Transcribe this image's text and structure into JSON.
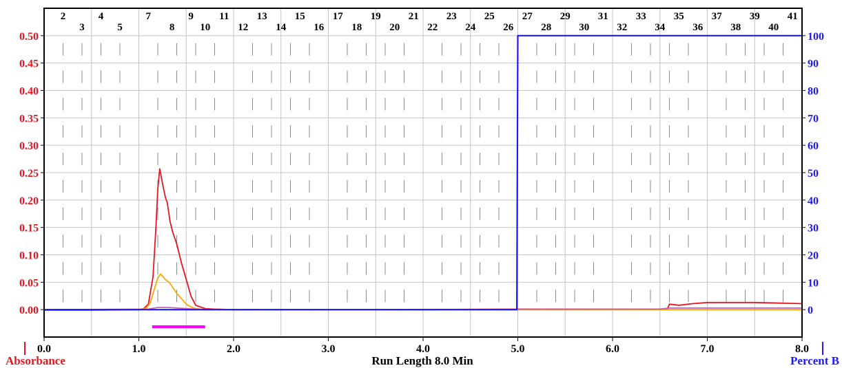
{
  "chart_data": {
    "type": "line",
    "xlabel": "Run Length 8.0 Min",
    "ylabel_left": "Absorbance",
    "ylabel_right": "Percent B",
    "xlim": [
      0,
      8
    ],
    "ylim_left": [
      -0.05,
      0.55
    ],
    "ylim_right": [
      -10,
      110
    ],
    "x_ticks": [
      "0.0",
      "1.0",
      "2.0",
      "3.0",
      "4.0",
      "5.0",
      "6.0",
      "7.0",
      "8.0"
    ],
    "y_ticks_left": [
      "0.50",
      "0.45",
      "0.40",
      "0.35",
      "0.30",
      "0.25",
      "0.20",
      "0.15",
      "0.10",
      "0.05",
      "0.00"
    ],
    "y_ticks_right": [
      "100",
      "90",
      "80",
      "70",
      "60",
      "50",
      "40",
      "30",
      "20",
      "10",
      "0"
    ],
    "grid": true,
    "fractions": {
      "labels": [
        "2",
        "3",
        "4",
        "5",
        "7",
        "8",
        "9",
        "10",
        "11",
        "12",
        "13",
        "14",
        "15",
        "16",
        "17",
        "18",
        "19",
        "20",
        "21",
        "22",
        "23",
        "24",
        "25",
        "26",
        "27",
        "28",
        "29",
        "30",
        "31",
        "32",
        "33",
        "34",
        "35",
        "36",
        "37",
        "38",
        "39",
        "40",
        "41"
      ],
      "label_x": [
        0.2,
        0.4,
        0.6,
        0.8,
        1.1,
        1.35,
        1.55,
        1.7,
        1.9,
        2.1,
        2.3,
        2.5,
        2.7,
        2.9,
        3.1,
        3.3,
        3.5,
        3.7,
        3.9,
        4.1,
        4.3,
        4.5,
        4.7,
        4.9,
        5.1,
        5.3,
        5.5,
        5.7,
        5.9,
        6.1,
        6.3,
        6.5,
        6.7,
        6.9,
        7.1,
        7.3,
        7.5,
        7.7,
        7.9
      ],
      "collected_from": 1.14,
      "collected_to": 1.7,
      "collected_color": "#ff00ff"
    },
    "series": [
      {
        "color": "#e8141c",
        "axis": "left",
        "x": [
          0.0,
          0.5,
          1.0,
          1.05,
          1.1,
          1.15,
          1.18,
          1.2,
          1.22,
          1.25,
          1.28,
          1.3,
          1.33,
          1.36,
          1.4,
          1.45,
          1.5,
          1.55,
          1.6,
          1.65,
          1.7,
          1.8,
          2.0,
          3.0,
          4.0,
          5.0,
          6.0,
          6.5,
          6.58,
          6.6,
          6.7,
          6.85,
          7.0,
          7.5,
          8.0
        ],
        "y": [
          -0.001,
          -0.001,
          0.0,
          0.002,
          0.01,
          0.06,
          0.15,
          0.22,
          0.257,
          0.23,
          0.205,
          0.195,
          0.16,
          0.14,
          0.12,
          0.085,
          0.055,
          0.025,
          0.008,
          0.005,
          0.002,
          0.001,
          0.0,
          0.0,
          0.0,
          0.001,
          0.001,
          0.001,
          0.002,
          0.01,
          0.008,
          0.011,
          0.013,
          0.013,
          0.011
        ]
      },
      {
        "color": "#f5a800",
        "axis": "left",
        "x": [
          0.0,
          1.0,
          1.08,
          1.12,
          1.16,
          1.2,
          1.23,
          1.28,
          1.32,
          1.36,
          1.4,
          1.45,
          1.5,
          1.55,
          1.6,
          1.65,
          1.7,
          2.0,
          8.0
        ],
        "y": [
          0.0,
          0.0,
          0.003,
          0.012,
          0.035,
          0.058,
          0.065,
          0.055,
          0.05,
          0.04,
          0.03,
          0.02,
          0.01,
          0.005,
          0.002,
          0.001,
          0.0,
          0.0,
          0.0
        ]
      },
      {
        "color": "#c060c0",
        "axis": "left",
        "x": [
          0.0,
          1.1,
          1.2,
          1.3,
          1.4,
          1.5,
          1.6,
          2.0,
          6.5,
          6.6,
          8.0
        ],
        "y": [
          0.0,
          0.001,
          0.004,
          0.004,
          0.003,
          0.002,
          0.001,
          0.0,
          0.001,
          0.003,
          0.003
        ]
      },
      {
        "color": "#1a1aff",
        "axis": "right",
        "x": [
          0.0,
          4.99,
          5.0,
          8.0
        ],
        "y": [
          0,
          0,
          100,
          100
        ]
      }
    ]
  }
}
